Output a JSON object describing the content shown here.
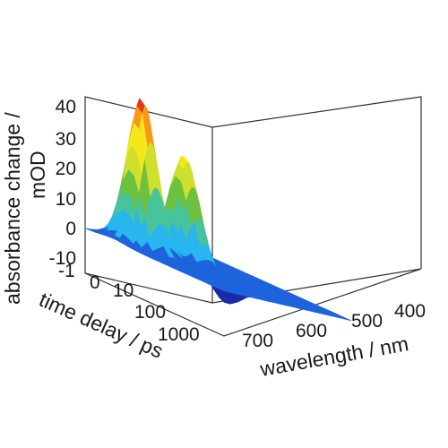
{
  "chart_data": {
    "type": "surface",
    "title": "",
    "zlabel_line1": "absorbance change /",
    "zlabel_line2": "mOD",
    "xlabel": "wavelength / nm",
    "ylabel": "time delay / ps",
    "z_ticks": [
      "40",
      "30",
      "20",
      "10",
      "0",
      "-10"
    ],
    "z_tick_values": [
      40,
      30,
      20,
      10,
      0,
      -10
    ],
    "x_ticks": [
      "700",
      "600",
      "500",
      "400"
    ],
    "x_tick_values": [
      700,
      600,
      500,
      400
    ],
    "y_ticks": [
      "-1",
      "0",
      "10",
      "100",
      "1000"
    ],
    "y_tick_values": [
      -1,
      0,
      10,
      100,
      1000
    ],
    "zlim": [
      -10,
      45
    ],
    "xlim": [
      740,
      380
    ],
    "y_scale": "linear-log",
    "colormap": [
      "#1a2aa8",
      "#1e64dc",
      "#29b6ee",
      "#49c49a",
      "#6ec03f",
      "#cfe02c",
      "#f4e81c",
      "#f79a18",
      "#e13a16",
      "#b51414"
    ],
    "features": [
      {
        "label": "peak",
        "wavelength_nm": 660,
        "delay_ps": 0.5,
        "value_mOD": 44
      },
      {
        "label": "peak",
        "wavelength_nm": 540,
        "delay_ps": 0.5,
        "value_mOD": 30
      },
      {
        "label": "trough",
        "wavelength_nm": 480,
        "delay_ps": 5,
        "value_mOD": -10
      }
    ]
  }
}
